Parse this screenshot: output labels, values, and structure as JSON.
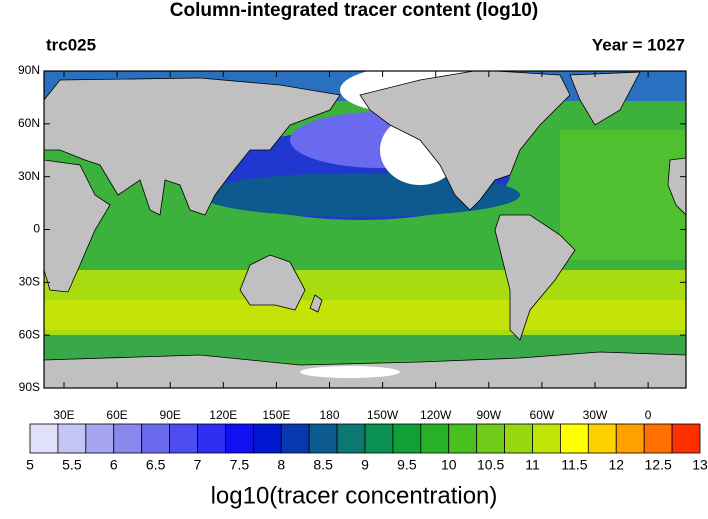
{
  "title": "Column-integrated tracer content (log10)",
  "left_label": "trc025",
  "right_label": "Year = 1027",
  "lat_labels": [
    "90N",
    "60N",
    "30N",
    "0",
    "30S",
    "60S",
    "90S"
  ],
  "lon_labels": [
    "30E",
    "60E",
    "90E",
    "120E",
    "150E",
    "180",
    "150W",
    "120W",
    "90W",
    "60W",
    "30W",
    "0"
  ],
  "colorbar": {
    "title": "log10(tracer concentration)",
    "colors": [
      "#e0e0fa",
      "#c4c4f5",
      "#a6a6f0",
      "#8888ee",
      "#6a6aee",
      "#4c4cf0",
      "#2e2ef0",
      "#1010f0",
      "#0018d0",
      "#0838b0",
      "#0c5a90",
      "#0c7870",
      "#0a9050",
      "#10a038",
      "#28b028",
      "#48c020",
      "#70cc18",
      "#98d810",
      "#c0e408",
      "#ffff00",
      "#ffd000",
      "#ffa000",
      "#ff7000",
      "#ff3000"
    ],
    "ticks": [
      5,
      5.5,
      6,
      6.5,
      7,
      7.5,
      8,
      8.5,
      9,
      9.5,
      10,
      10.5,
      11,
      11.5,
      12,
      12.5,
      13
    ]
  }
}
